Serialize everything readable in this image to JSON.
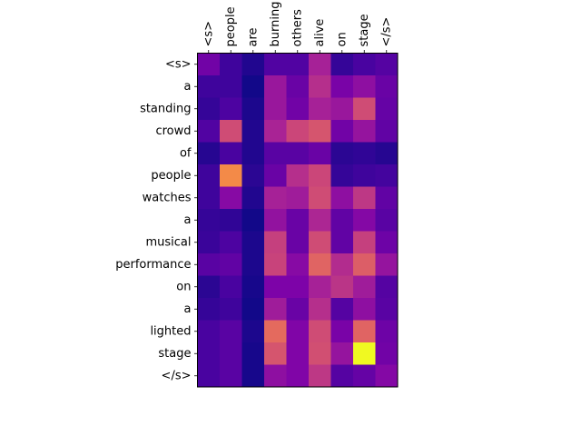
{
  "chart_data": {
    "type": "heatmap",
    "title": "",
    "xlabel": "",
    "ylabel": "",
    "x_tick_position": "top",
    "x_tick_rotation_deg": 90,
    "grid": false,
    "colorbar": false,
    "colormap": "plasma",
    "value_range": [
      0,
      1
    ],
    "x_categories": [
      "<s>",
      "people",
      "are",
      "burning",
      "others",
      "alive",
      "on",
      "stage",
      "</s>"
    ],
    "y_categories": [
      "<s>",
      "a",
      "standing",
      "crowd",
      "of",
      "people",
      "watches",
      "a",
      "musical",
      "performance",
      "on",
      "a",
      "lighted",
      "stage",
      "</s>"
    ],
    "values": [
      [
        0.22,
        0.1,
        0.04,
        0.14,
        0.14,
        0.37,
        0.08,
        0.12,
        0.15
      ],
      [
        0.1,
        0.1,
        0.01,
        0.33,
        0.2,
        0.42,
        0.24,
        0.3,
        0.2
      ],
      [
        0.08,
        0.13,
        0.03,
        0.33,
        0.22,
        0.37,
        0.33,
        0.52,
        0.19
      ],
      [
        0.14,
        0.52,
        0.04,
        0.38,
        0.5,
        0.55,
        0.22,
        0.32,
        0.18
      ],
      [
        0.05,
        0.12,
        0.04,
        0.16,
        0.16,
        0.2,
        0.06,
        0.07,
        0.05
      ],
      [
        0.1,
        0.72,
        0.06,
        0.2,
        0.42,
        0.5,
        0.08,
        0.1,
        0.11
      ],
      [
        0.1,
        0.28,
        0.04,
        0.37,
        0.35,
        0.52,
        0.3,
        0.45,
        0.18
      ],
      [
        0.08,
        0.07,
        0.01,
        0.31,
        0.2,
        0.39,
        0.18,
        0.27,
        0.16
      ],
      [
        0.09,
        0.13,
        0.03,
        0.48,
        0.2,
        0.52,
        0.18,
        0.48,
        0.21
      ],
      [
        0.16,
        0.18,
        0.03,
        0.49,
        0.28,
        0.6,
        0.41,
        0.58,
        0.32
      ],
      [
        0.06,
        0.12,
        0.02,
        0.25,
        0.25,
        0.37,
        0.44,
        0.35,
        0.15
      ],
      [
        0.08,
        0.1,
        0.01,
        0.35,
        0.2,
        0.42,
        0.15,
        0.3,
        0.16
      ],
      [
        0.12,
        0.16,
        0.03,
        0.62,
        0.26,
        0.52,
        0.24,
        0.6,
        0.21
      ],
      [
        0.12,
        0.16,
        0.02,
        0.55,
        0.26,
        0.53,
        0.32,
        1.0,
        0.22
      ],
      [
        0.12,
        0.16,
        0.02,
        0.3,
        0.26,
        0.45,
        0.15,
        0.19,
        0.27
      ]
    ]
  }
}
